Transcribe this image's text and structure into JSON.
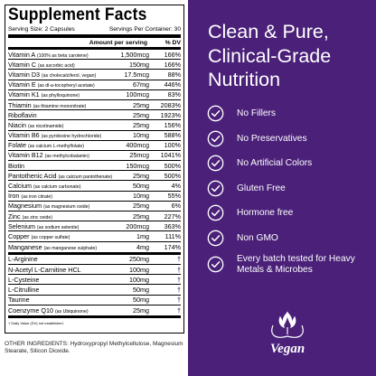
{
  "facts": {
    "title": "Supplement Facts",
    "serving_size": "Serving Size: 2 Capsules",
    "servings_per_container": "Servings Per Container: 30",
    "amount_header": "Amount per serving",
    "dv_header": "% DV",
    "rows": [
      {
        "name": "Vitamin A",
        "note": "(100% as beta carotene)",
        "amount": "1,500mcg",
        "dv": "166%"
      },
      {
        "name": "Vitamin C",
        "note": "(as ascorbic acid)",
        "amount": "150mg",
        "dv": "166%"
      },
      {
        "name": "Vitamin D3",
        "note": "(as cholecalciferol, vegan)",
        "amount": "17.5mcg",
        "dv": "88%"
      },
      {
        "name": "Vitamin E",
        "note": "(as dl-a-tocopheryl acetate)",
        "amount": "67mg",
        "dv": "446%"
      },
      {
        "name": "Vitamin K1",
        "note": "(as phylloquinone)",
        "amount": "100mcg",
        "dv": "83%"
      },
      {
        "name": "Thiamin",
        "note": "(as thiamine mononitrate)",
        "amount": "25mg",
        "dv": "2083%"
      },
      {
        "name": "Riboflavin",
        "note": "",
        "amount": "25mg",
        "dv": "1923%"
      },
      {
        "name": "Niacin",
        "note": "(as nicotinamide)",
        "amount": "25mg",
        "dv": "156%"
      },
      {
        "name": "Vitamin B6",
        "note": "(as pyridoxine hydrochloride)",
        "amount": "10mg",
        "dv": "588%"
      },
      {
        "name": "Folate",
        "note": "(as calcium L-methylfolate)",
        "amount": "400mcg",
        "dv": "100%"
      },
      {
        "name": "Vitamin B12",
        "note": "(as methylcobalamin)",
        "amount": "25mcg",
        "dv": "1041%"
      },
      {
        "name": "Biotin",
        "note": "",
        "amount": "150mcg",
        "dv": "500%"
      },
      {
        "name": "Pantothenic Acid",
        "note": "(as calcium pantothenate)",
        "amount": "25mg",
        "dv": "500%"
      },
      {
        "name": "Calcium",
        "note": "(as calcium carbonate)",
        "amount": "50mg",
        "dv": "4%"
      },
      {
        "name": "Iron",
        "note": "(as iron citrate)",
        "amount": "10mg",
        "dv": "55%"
      },
      {
        "name": "Magnesium",
        "note": "(as magnesium oxide)",
        "amount": "25mg",
        "dv": "6%"
      },
      {
        "name": "Zinc",
        "note": "(as zinc oxide)",
        "amount": "25mg",
        "dv": "227%"
      },
      {
        "name": "Selenium",
        "note": "(as sodium selenite)",
        "amount": "200mcg",
        "dv": "363%"
      },
      {
        "name": "Copper",
        "note": "(as copper sulfate)",
        "amount": "1mg",
        "dv": "111%"
      },
      {
        "name": "Manganese",
        "note": "(as manganese sulphate)",
        "amount": "4mg",
        "dv": "174%"
      }
    ],
    "other_rows": [
      {
        "name": "L-Arginine",
        "amount": "250mg",
        "dv": "†"
      },
      {
        "name": "N-Acetyl L-Carnitine HCL",
        "amount": "100mg",
        "dv": "†"
      },
      {
        "name": "L-Cysteine",
        "amount": "100mg",
        "dv": "†"
      },
      {
        "name": "L-Citrulline",
        "amount": "50mg",
        "dv": "†"
      },
      {
        "name": "Taurine",
        "amount": "50mg",
        "dv": "†"
      },
      {
        "name": "Coenzyme Q10",
        "note": "(as Ubiquinone)",
        "amount": "25mg",
        "dv": "†"
      }
    ],
    "footnote": "† Daily Value (DV) not established."
  },
  "other_ingredients": "OTHER INGREDIENTS: Hydroxypropyl Methylcellulose, Magnesium Stearate, Silicon Dioxide.",
  "headline": "Clean & Pure, Clinical-Grade Nutrition",
  "claims": [
    "No Fillers",
    "No Preservatives",
    "No Artificial Colors",
    "Gluten Free",
    "Hormone free",
    "Non GMO",
    "Every batch tested for Heavy Metals & Microbes"
  ],
  "vegan_badge": "Vegan",
  "colors": {
    "panel_purple": "#4a2079",
    "text_white": "#ffffff",
    "rule_black": "#000000"
  }
}
